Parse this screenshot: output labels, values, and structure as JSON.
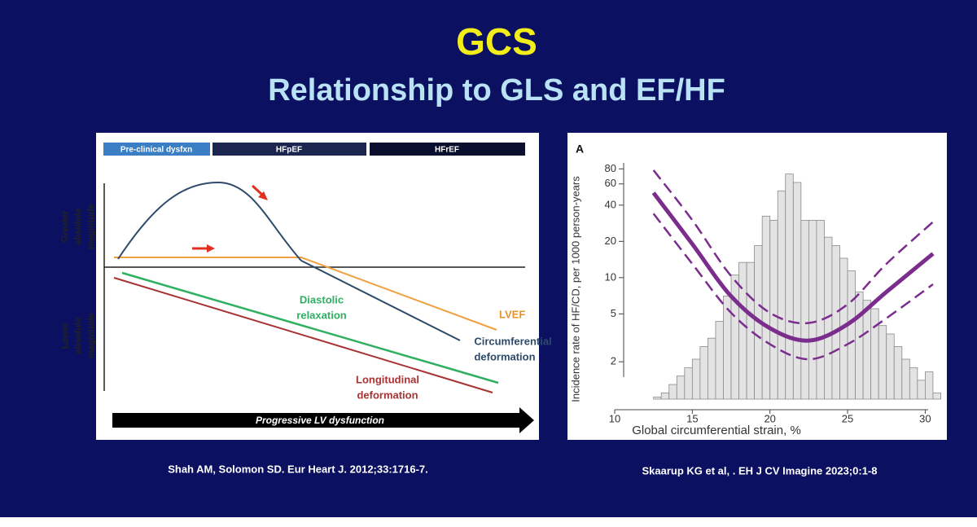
{
  "slide": {
    "title": "GCS",
    "subtitle": "Relationship to GLS and EF/HF",
    "citations": [
      "Shah AM, Solomon SD. Eur Heart J. 2012;33:1716-7.",
      "Skaarup KG et al, . EH J CV Imagine 2023;0:1-8"
    ]
  },
  "diagram": {
    "phases": [
      "Pre-clinical dysfxn",
      "HFpEF",
      "HFrEF"
    ],
    "upper_axis_label": [
      "Greater",
      "absolute",
      "magnitude"
    ],
    "lower_axis_label": [
      "Lower",
      "absolute",
      "magnitude"
    ],
    "curve_labels": {
      "diastolic": [
        "Diastolic",
        "relaxation"
      ],
      "lvef": [
        "LVEF"
      ],
      "circumferential": [
        "Circumferential",
        "deformation"
      ],
      "longitudinal": [
        "Longitudinal",
        "deformation"
      ]
    },
    "arrow_label": "Progressive LV dysfunction"
  },
  "chart_data": [
    {
      "type": "line",
      "panel_label": "A",
      "xlabel": "Global circumferential strain, %",
      "ylabel": "Incidence rate of HF/CD, per 1000 person-years",
      "x": [
        12.5,
        15,
        17.5,
        20,
        22.5,
        25,
        27.5,
        30.5
      ],
      "series": [
        {
          "name": "upper",
          "color": "#7b2d8e",
          "dashed": true,
          "values": [
            78,
            30,
            10.3,
            5.1,
            4.2,
            6.0,
            13,
            29
          ]
        },
        {
          "name": "estimate",
          "color": "#7b2d8e",
          "dashed": false,
          "values": [
            50.6,
            19,
            7,
            3.8,
            3.0,
            4.1,
            7.6,
            15.8
          ]
        },
        {
          "name": "lower",
          "color": "#7b2d8e",
          "dashed": true,
          "values": [
            34,
            13,
            5.1,
            2.8,
            2.1,
            2.8,
            4.6,
            8.8
          ]
        }
      ],
      "xlim": [
        10,
        31.5
      ],
      "xticks": [
        10,
        15,
        20,
        25,
        30
      ],
      "ylim": [
        0.8,
        100
      ],
      "yticks": [
        2,
        5,
        10,
        20,
        40,
        60,
        80
      ],
      "ylog": true,
      "grid": false
    },
    {
      "type": "histogram",
      "color": "#e3e3e3",
      "bins": [
        12.5,
        13,
        13.5,
        14,
        14.5,
        15,
        15.5,
        16,
        16.5,
        17,
        17.5,
        18,
        18.5,
        19,
        19.5,
        20,
        20.5,
        21,
        21.5,
        22,
        22.5,
        23,
        23.5,
        24,
        24.5,
        25,
        25.5,
        26,
        26.5,
        27,
        27.5,
        28,
        28.5,
        29,
        29.5,
        30,
        30.5,
        31
      ],
      "counts": [
        15,
        20,
        30,
        40,
        50,
        60,
        75,
        85,
        105,
        135,
        160,
        175,
        175,
        195,
        230,
        225,
        260,
        280,
        270,
        225,
        225,
        225,
        205,
        195,
        180,
        165,
        140,
        130,
        120,
        100,
        90,
        75,
        60,
        50,
        35,
        45,
        20
      ],
      "xlim": [
        10,
        31.5
      ],
      "ylim": [
        0,
        300
      ]
    }
  ]
}
